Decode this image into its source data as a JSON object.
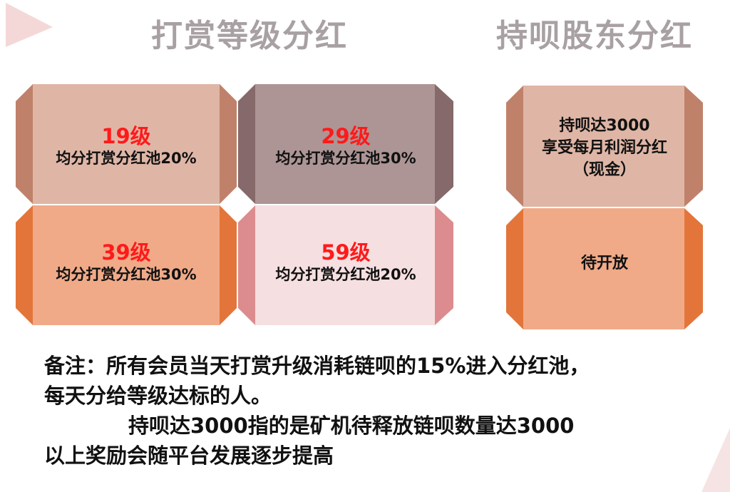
{
  "headings": {
    "tip_dividend": "打赏等级分红",
    "holder_dividend": "持呗股东分红"
  },
  "levels": [
    {
      "level": "19级",
      "desc": "均分打赏分红池20%"
    },
    {
      "level": "29级",
      "desc": "均分打赏分红池30%"
    },
    {
      "level": "39级",
      "desc": "均分打赏分红池30%"
    },
    {
      "level": "59级",
      "desc": "均分打赏分红池20%"
    }
  ],
  "holder": {
    "line1": "持呗达3000",
    "line2": "享受每月利润分红",
    "line3": "（现金）",
    "pending": "待开放"
  },
  "notes": {
    "line1": "备注：所有会员当天打赏升级消耗链呗的15%进入分红池，",
    "line2": "每天分给等级达标的人。",
    "line3": "持呗达3000指的是矿机待释放链呗数量达3000",
    "line4": "以上奖励会随平台发展逐步提高"
  },
  "colors": {
    "card1_face": "#dfb6a6",
    "card1_side": "#c0816a",
    "card2_face": "#ad9595",
    "card2_side": "#86696a",
    "card3_face": "#f0aa88",
    "card3_side": "#e4753a",
    "card4_face": "#f5dfe0",
    "card4_side": "#dc8c8e",
    "heading": "#a8a0a2",
    "level_text": "#ff1a1a"
  }
}
